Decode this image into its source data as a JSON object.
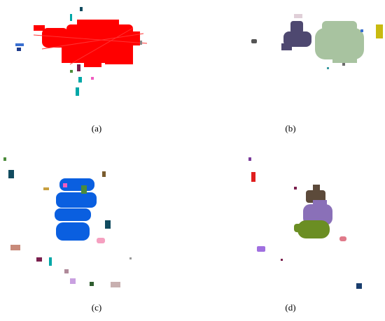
{
  "figure": {
    "panels": [
      {
        "id": "a",
        "caption": "(a)",
        "colors": [
          "#ff0000",
          "#3a6fd0",
          "#00a7a7",
          "#7a1f4d",
          "#f05cc0",
          "#1e3a8a",
          "#4b8b3b"
        ]
      },
      {
        "id": "b",
        "caption": "(b)",
        "colors": [
          "#a8c3a0",
          "#4e4870",
          "#c8ba10",
          "#555555",
          "#e0cfd8"
        ]
      },
      {
        "id": "c",
        "caption": "(c)",
        "colors": [
          "#0a5fe0",
          "#c88a7a",
          "#b08a9a",
          "#114b5f",
          "#7a5c2e"
        ]
      },
      {
        "id": "d",
        "caption": "(d)",
        "colors": [
          "#6b8e23",
          "#8a70b8",
          "#5c4a3a",
          "#e07a8a",
          "#e01e1e",
          "#1a3e6e"
        ]
      }
    ]
  }
}
